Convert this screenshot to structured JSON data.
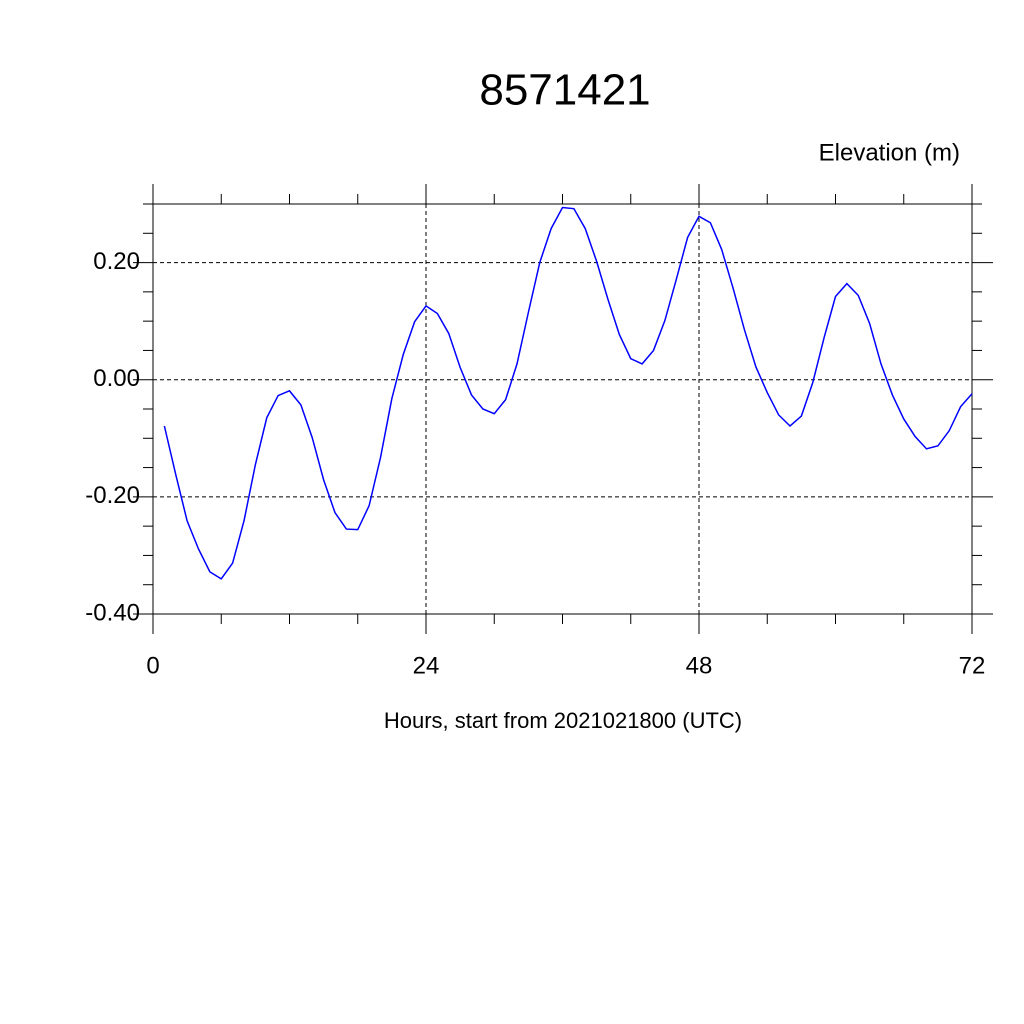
{
  "chart_data": {
    "type": "line",
    "title": "8571421",
    "y_label": "Elevation (m)",
    "x_label": "Hours, start from 2021021800 (UTC)",
    "x": [
      1,
      2,
      3,
      4,
      5,
      6,
      7,
      8,
      9,
      10,
      11,
      12,
      13,
      14,
      15,
      16,
      17,
      18,
      19,
      20,
      21,
      22,
      23,
      24,
      25,
      26,
      27,
      28,
      29,
      30,
      31,
      32,
      33,
      34,
      35,
      36,
      37,
      38,
      39,
      40,
      41,
      42,
      43,
      44,
      45,
      46,
      47,
      48,
      49,
      50,
      51,
      52,
      53,
      54,
      55,
      56,
      57,
      58,
      59,
      60,
      61,
      62,
      63,
      64,
      65,
      66,
      67,
      68,
      69,
      70,
      71,
      72
    ],
    "series": [
      {
        "name": "Elevation",
        "color": "#0000ff",
        "values": [
          -0.079,
          -0.162,
          -0.241,
          -0.289,
          -0.328,
          -0.34,
          -0.313,
          -0.241,
          -0.145,
          -0.065,
          -0.027,
          -0.019,
          -0.043,
          -0.099,
          -0.171,
          -0.227,
          -0.255,
          -0.256,
          -0.215,
          -0.133,
          -0.032,
          0.043,
          0.099,
          0.126,
          0.113,
          0.079,
          0.021,
          -0.026,
          -0.05,
          -0.058,
          -0.034,
          0.027,
          0.115,
          0.2,
          0.258,
          0.294,
          0.292,
          0.258,
          0.202,
          0.137,
          0.077,
          0.036,
          0.027,
          0.05,
          0.101,
          0.171,
          0.243,
          0.279,
          0.268,
          0.222,
          0.156,
          0.085,
          0.022,
          -0.022,
          -0.06,
          -0.079,
          -0.062,
          -0.005,
          0.072,
          0.142,
          0.164,
          0.144,
          0.096,
          0.027,
          -0.026,
          -0.067,
          -0.097,
          -0.118,
          -0.113,
          -0.087,
          -0.046,
          -0.024
        ]
      }
    ],
    "xlim": [
      0,
      72
    ],
    "xticks": [
      0,
      24,
      48,
      72
    ],
    "xminorticks": [
      6,
      12,
      18,
      30,
      36,
      42,
      54,
      60,
      66
    ],
    "ylim": [
      -0.4,
      0.3
    ],
    "yticks": [
      {
        "value": -0.4,
        "label": "-0.40"
      },
      {
        "value": -0.2,
        "label": "-0.20"
      },
      {
        "value": 0,
        "label": "0.00"
      },
      {
        "value": 0.2,
        "label": "0.20"
      }
    ],
    "yminorticks": [
      -0.35,
      -0.3,
      -0.25,
      -0.15,
      -0.1,
      -0.05,
      0.05,
      0.1,
      0.15,
      0.25,
      0.3
    ],
    "grid": true
  }
}
